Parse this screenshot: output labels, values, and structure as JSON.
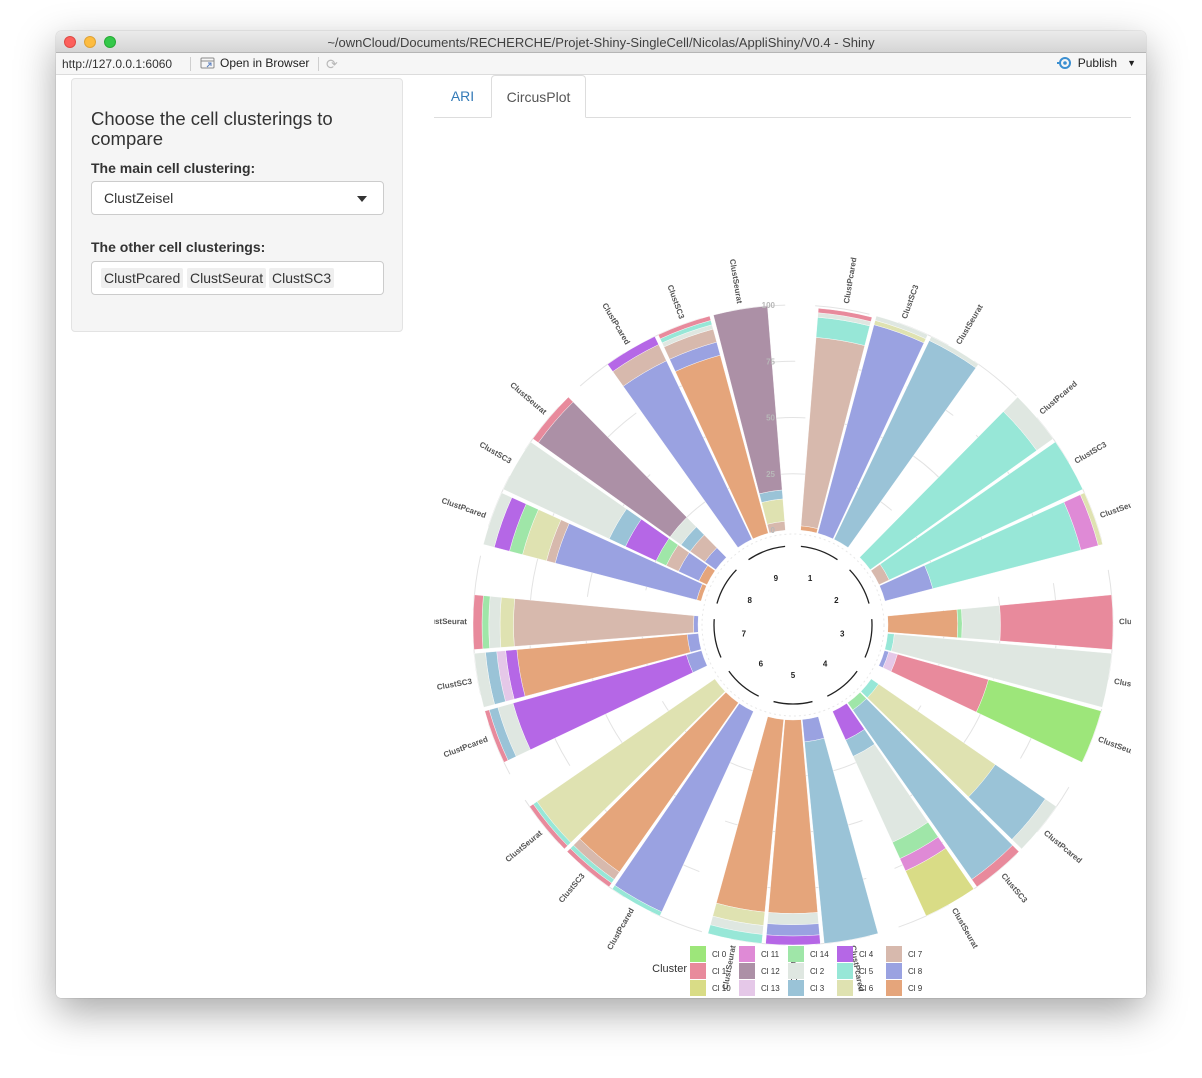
{
  "window": {
    "title": "~/ownCloud/Documents/RECHERCHE/Projet-Shiny-SingleCell/Nicolas/AppliShiny/V0.4 - Shiny"
  },
  "toolbar": {
    "url": "http://127.0.0.1:6060",
    "open_in_browser": "Open in Browser",
    "publish": "Publish",
    "icons": [
      "open-in-browser-icon",
      "refresh-icon",
      "publish-icon",
      "chevron-down-icon"
    ]
  },
  "sidebar": {
    "title": "Choose the cell clusterings to compare",
    "main_label": "The main cell clustering:",
    "main_value": "ClustZeisel",
    "other_label": "The other cell clusterings:",
    "other_values": [
      "ClustPcared",
      "ClustSeurat",
      "ClustSC3"
    ]
  },
  "tabs": [
    {
      "label": "ARI",
      "active": false
    },
    {
      "label": "CircusPlot",
      "active": true
    }
  ],
  "chart_data": {
    "type": "bar",
    "subtype": "circular stacked bar",
    "axis_ticks": [
      "0",
      "25",
      "50",
      "75",
      "100"
    ],
    "ylim": [
      0,
      100
    ],
    "groups": [
      {
        "name": "1",
        "bars": [
          {
            "label": "ClustPcared",
            "stacks": [
              [
                "Cl 9",
                2
              ],
              [
                "Cl 7",
                84
              ],
              [
                "Cl 5",
                9
              ],
              [
                "Cl 2",
                2
              ],
              [
                "Cl 1",
                2
              ]
            ]
          },
          {
            "label": "ClustSC3",
            "stacks": [
              [
                "Cl 8",
                96
              ],
              [
                "Cl 6",
                2
              ],
              [
                "Cl 2",
                2
              ]
            ]
          },
          {
            "label": "ClustSeurat",
            "stacks": [
              [
                "Cl 3",
                98
              ],
              [
                "Cl 2",
                2
              ]
            ]
          }
        ]
      },
      {
        "name": "2",
        "bars": [
          {
            "label": "ClustPcared",
            "stacks": [
              [
                "Cl 5",
                91
              ],
              [
                "Cl 2",
                9
              ]
            ]
          },
          {
            "label": "ClustSC3",
            "stacks": [
              [
                "Cl 7",
                5
              ],
              [
                "Cl 5",
                95
              ]
            ]
          },
          {
            "label": "ClustSeurat",
            "stacks": [
              [
                "Cl 8",
                22
              ],
              [
                "Cl 5",
                68
              ],
              [
                "Cl 11",
                8
              ],
              [
                "Cl 6",
                2
              ]
            ]
          }
        ]
      },
      {
        "name": "3",
        "bars": [
          {
            "label": "ClustPcared",
            "stacks": [
              [
                "Cl 9",
                31
              ],
              [
                "Cl 14",
                2
              ],
              [
                "Cl 2",
                17
              ],
              [
                "Cl 1",
                50
              ]
            ]
          },
          {
            "label": "ClustSC3",
            "stacks": [
              [
                "Cl 5",
                3
              ],
              [
                "Cl 2",
                97
              ]
            ]
          },
          {
            "label": "ClustSeurat",
            "stacks": [
              [
                "Cl 8",
                2
              ],
              [
                "Cl 13",
                4
              ],
              [
                "Cl 1",
                42
              ],
              [
                "Cl 0",
                52
              ]
            ]
          }
        ]
      },
      {
        "name": "4",
        "bars": [
          {
            "label": "ClustPcared",
            "stacks": [
              [
                "Cl 5",
                4
              ],
              [
                "Cl 6",
                63
              ],
              [
                "Cl 3",
                27
              ],
              [
                "Cl 2",
                6
              ]
            ]
          },
          {
            "label": "ClustSC3",
            "stacks": [
              [
                "Cl 14",
                4
              ],
              [
                "Cl 3",
                92
              ],
              [
                "Cl 1",
                4
              ]
            ]
          },
          {
            "label": "ClustSeurat",
            "stacks": [
              [
                "Cl 4",
                14
              ],
              [
                "Cl 3",
                8
              ],
              [
                "Cl 2",
                42
              ],
              [
                "Cl 14",
                8
              ],
              [
                "Cl 11",
                6
              ],
              [
                "Cl 10",
                22
              ]
            ]
          }
        ]
      },
      {
        "name": "5",
        "bars": [
          {
            "label": "ClustPcared",
            "stacks": [
              [
                "Cl 8",
                10
              ],
              [
                "Cl 3",
                90
              ]
            ]
          },
          {
            "label": "ClustSC3",
            "stacks": [
              [
                "Cl 9",
                86
              ],
              [
                "Cl 2",
                5
              ],
              [
                "Cl 8",
                5
              ],
              [
                "Cl 4",
                4
              ]
            ]
          },
          {
            "label": "ClustSeurat",
            "stacks": [
              [
                "Cl 9",
                86
              ],
              [
                "Cl 6",
                6
              ],
              [
                "Cl 2",
                4
              ],
              [
                "Cl 5",
                4
              ]
            ]
          }
        ]
      },
      {
        "name": "6",
        "bars": [
          {
            "label": "ClustPcared",
            "stacks": [
              [
                "Cl 8",
                98
              ],
              [
                "Cl 5",
                2
              ]
            ]
          },
          {
            "label": "ClustSC3",
            "stacks": [
              [
                "Cl 9",
                92
              ],
              [
                "Cl 7",
                4
              ],
              [
                "Cl 5",
                2
              ],
              [
                "Cl 1",
                2
              ]
            ]
          },
          {
            "label": "ClustSeurat",
            "stacks": [
              [
                "Cl 6",
                96
              ],
              [
                "Cl 5",
                2
              ],
              [
                "Cl 1",
                2
              ]
            ]
          }
        ]
      },
      {
        "name": "7",
        "bars": [
          {
            "label": "ClustPcared",
            "stacks": [
              [
                "Cl 8",
                7
              ],
              [
                "Cl 4",
                80
              ],
              [
                "Cl 2",
                7
              ],
              [
                "Cl 3",
                4
              ],
              [
                "Cl 1",
                2
              ]
            ]
          },
          {
            "label": "ClustSC3",
            "stacks": [
              [
                "Cl 8",
                5
              ],
              [
                "Cl 9",
                76
              ],
              [
                "Cl 4",
                5
              ],
              [
                "Cl 13",
                4
              ],
              [
                "Cl 3",
                5
              ],
              [
                "Cl 2",
                5
              ]
            ]
          },
          {
            "label": "ClustSeurat",
            "stacks": [
              [
                "Cl 8",
                2
              ],
              [
                "Cl 7",
                80
              ],
              [
                "Cl 6",
                6
              ],
              [
                "Cl 2",
                5
              ],
              [
                "Cl 14",
                3
              ],
              [
                "Cl 1",
                4
              ]
            ]
          }
        ]
      },
      {
        "name": "8",
        "bars": [
          {
            "label": "ClustPcared",
            "stacks": [
              [
                "Cl 9",
                2
              ],
              [
                "Cl 8",
                65
              ],
              [
                "Cl 7",
                4
              ],
              [
                "Cl 6",
                11
              ],
              [
                "Cl 14",
                6
              ],
              [
                "Cl 4",
                7
              ],
              [
                "Cl 2",
                5
              ]
            ]
          },
          {
            "label": "ClustSC3",
            "stacks": [
              [
                "Cl 9",
                4
              ],
              [
                "Cl 8",
                10
              ],
              [
                "Cl 7",
                6
              ],
              [
                "Cl 14",
                5
              ],
              [
                "Cl 4",
                15
              ],
              [
                "Cl 3",
                8
              ],
              [
                "Cl 2",
                52
              ]
            ]
          },
          {
            "label": "ClustSeurat",
            "stacks": [
              [
                "Cl 8",
                6
              ],
              [
                "Cl 7",
                8
              ],
              [
                "Cl 3",
                5
              ],
              [
                "Cl 2",
                6
              ],
              [
                "Cl 12",
                72
              ],
              [
                "Cl 1",
                3
              ]
            ]
          }
        ]
      },
      {
        "name": "9",
        "bars": [
          {
            "label": "ClustPcared",
            "stacks": [
              [
                "Cl 8",
                88
              ],
              [
                "Cl 7",
                8
              ],
              [
                "Cl 4",
                4
              ]
            ]
          },
          {
            "label": "ClustSC3",
            "stacks": [
              [
                "Cl 9",
                82
              ],
              [
                "Cl 8",
                6
              ],
              [
                "Cl 7",
                6
              ],
              [
                "Cl 2",
                2
              ],
              [
                "Cl 5",
                2
              ],
              [
                "Cl 1",
                2
              ]
            ]
          },
          {
            "label": "ClustSeurat",
            "stacks": [
              [
                "Cl 7",
                4
              ],
              [
                "Cl 6",
                10
              ],
              [
                "Cl 3",
                4
              ],
              [
                "Cl 12",
                82
              ]
            ]
          }
        ]
      }
    ],
    "legend": {
      "title": "Cluster",
      "entries": [
        {
          "label": "Cl 0",
          "color": "#9de67a"
        },
        {
          "label": "Cl 1",
          "color": "#e88a9c"
        },
        {
          "label": "Cl 10",
          "color": "#d9dc86"
        },
        {
          "label": "Cl 11",
          "color": "#df8ad6"
        },
        {
          "label": "Cl 12",
          "color": "#ac90a6"
        },
        {
          "label": "Cl 13",
          "color": "#e5c8e8"
        },
        {
          "label": "Cl 14",
          "color": "#9fe6a8"
        },
        {
          "label": "Cl 2",
          "color": "#dfe7e1"
        },
        {
          "label": "Cl 3",
          "color": "#9ac3d7"
        },
        {
          "label": "Cl 4",
          "color": "#b567e6"
        },
        {
          "label": "Cl 5",
          "color": "#97e7d7"
        },
        {
          "label": "Cl 6",
          "color": "#dfe2b1"
        },
        {
          "label": "Cl 7",
          "color": "#d7b9ad"
        },
        {
          "label": "Cl 8",
          "color": "#9aa2e1"
        },
        {
          "label": "Cl 9",
          "color": "#e5a57b"
        }
      ]
    }
  }
}
